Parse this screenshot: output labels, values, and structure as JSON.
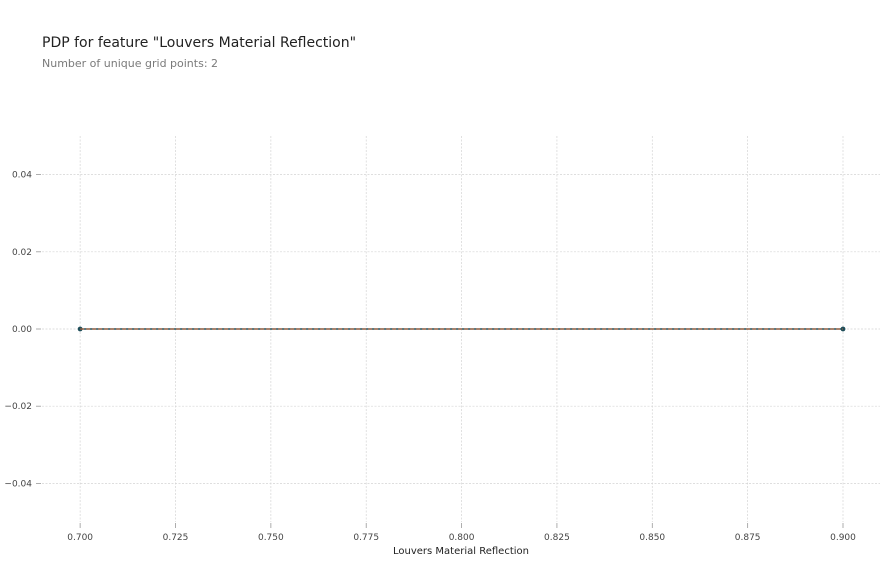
{
  "chart_data": {
    "type": "line",
    "title": "PDP for feature \"Louvers Material Reflection\"",
    "subtitle": "Number of unique grid points: 2",
    "xlabel": "Louvers Material Reflection",
    "ylabel": "",
    "xlim": [
      0.69,
      0.9097
    ],
    "ylim": [
      -0.05,
      0.05
    ],
    "xticks": [
      0.7,
      0.725,
      0.75,
      0.775,
      0.8,
      0.825,
      0.85,
      0.875,
      0.9
    ],
    "xtick_labels": [
      "0.700",
      "0.725",
      "0.750",
      "0.775",
      "0.800",
      "0.825",
      "0.850",
      "0.875",
      "0.900"
    ],
    "yticks": [
      0.04,
      0.02,
      0.0,
      -0.02,
      -0.04
    ],
    "ytick_labels": [
      "0.04",
      "0.02",
      "0.00",
      "−0.02",
      "−0.04"
    ],
    "grid": true,
    "legend": "none",
    "series": [
      {
        "x": [
          0.7,
          0.9
        ],
        "y": [
          0.0,
          0.0
        ],
        "line_color": "#1f4e5a",
        "marker": "circle"
      }
    ],
    "reference_line": {
      "y": 0.0,
      "color": "#d9622b"
    }
  }
}
